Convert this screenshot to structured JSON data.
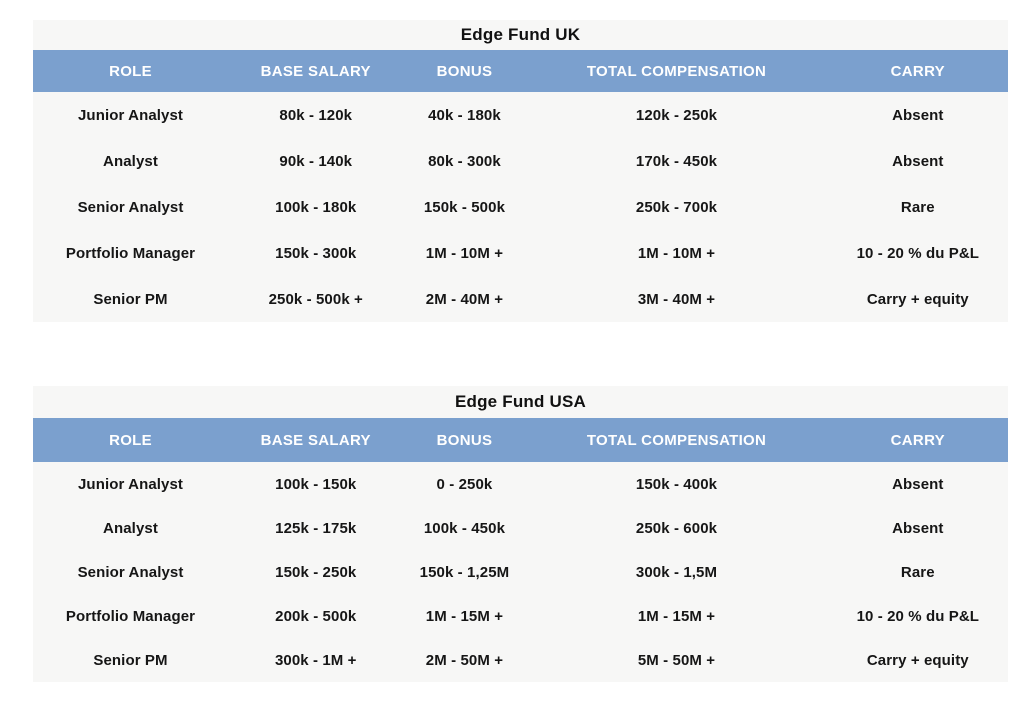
{
  "colors": {
    "header_bg": "#7ba0ce",
    "header_text": "#ffffff",
    "body_bg": "#f7f7f6",
    "page_bg": "#ffffff",
    "cell_text": "#161616"
  },
  "columns": [
    "ROLE",
    "BASE SALARY",
    "BONUS",
    "TOTAL COMPENSATION",
    "CARRY"
  ],
  "tables": [
    {
      "title": "Edge Fund UK",
      "rows": [
        [
          "Junior Analyst",
          "80k - 120k",
          "40k - 180k",
          "120k - 250k",
          "Absent"
        ],
        [
          "Analyst",
          "90k - 140k",
          "80k - 300k",
          "170k - 450k",
          "Absent"
        ],
        [
          "Senior Analyst",
          "100k - 180k",
          "150k - 500k",
          "250k - 700k",
          "Rare"
        ],
        [
          "Portfolio Manager",
          "150k - 300k",
          "1M - 10M +",
          "1M - 10M +",
          "10 - 20 % du P&L"
        ],
        [
          "Senior PM",
          "250k - 500k +",
          "2M - 40M +",
          "3M - 40M +",
          "Carry + equity"
        ]
      ]
    },
    {
      "title": "Edge Fund USA",
      "rows": [
        [
          "Junior Analyst",
          "100k - 150k",
          "0 - 250k",
          "150k - 400k",
          "Absent"
        ],
        [
          "Analyst",
          "125k - 175k",
          "100k - 450k",
          "250k - 600k",
          "Absent"
        ],
        [
          "Senior Analyst",
          "150k - 250k",
          "150k - 1,25M",
          "300k - 1,5M",
          "Rare"
        ],
        [
          "Portfolio Manager",
          "200k - 500k",
          "1M - 15M +",
          "1M - 15M +",
          "10 - 20 % du P&L"
        ],
        [
          "Senior PM",
          "300k - 1M +",
          "2M - 50M +",
          "5M - 50M +",
          "Carry + equity"
        ]
      ]
    }
  ]
}
